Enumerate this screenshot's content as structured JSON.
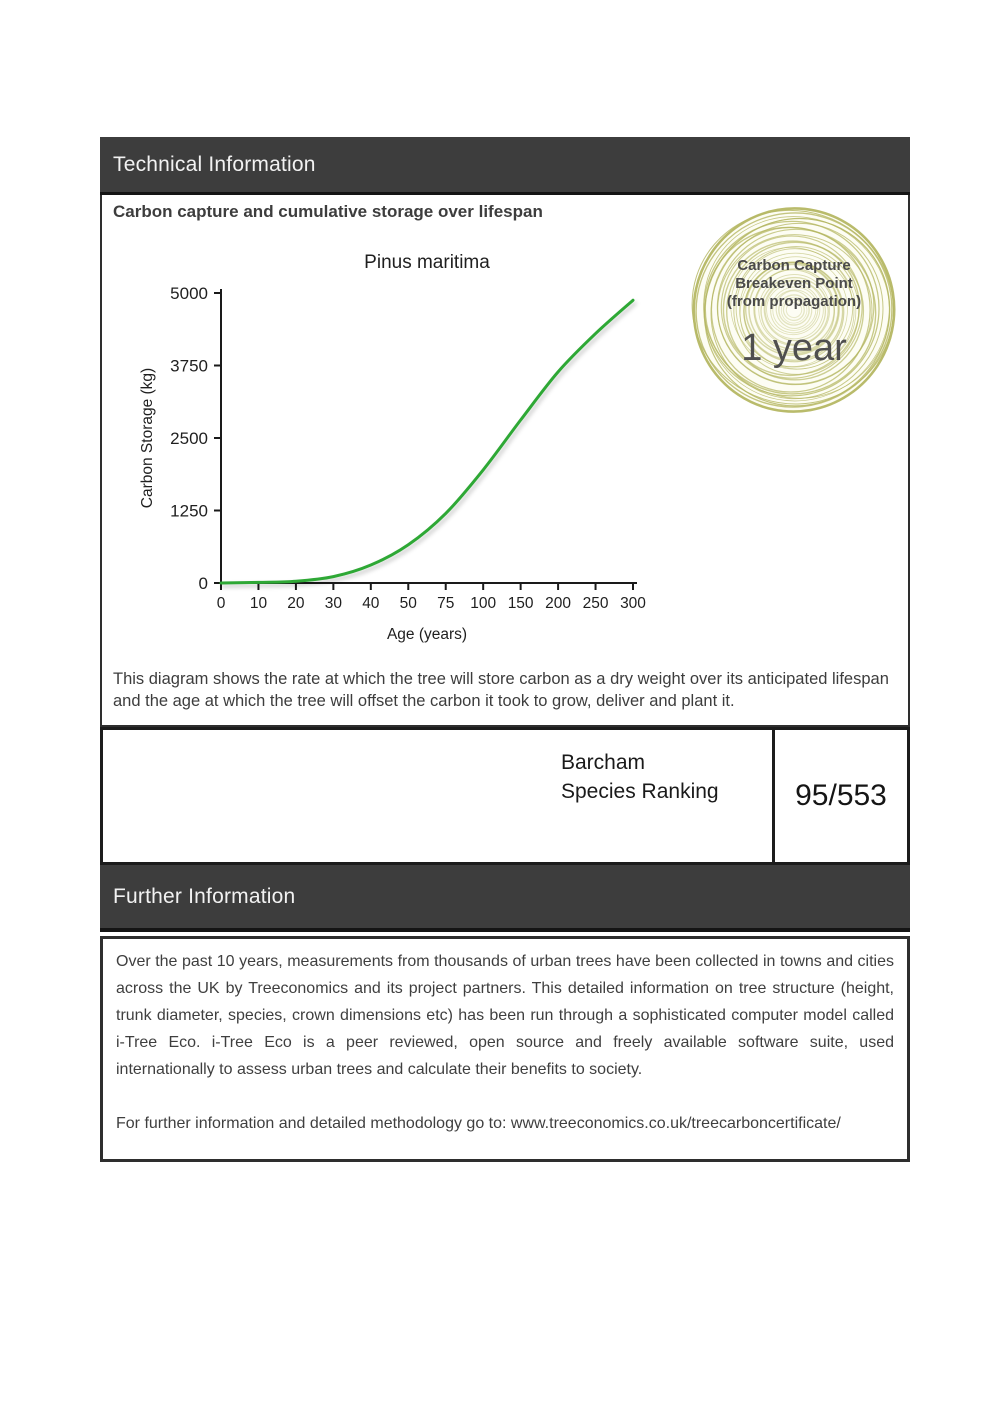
{
  "header": {
    "technical": "Technical Information",
    "further": "Further Information"
  },
  "technical": {
    "subtitle": "Carbon capture and cumulative storage over lifespan",
    "description": "This diagram shows the rate at which the tree will store carbon as a dry weight over its anticipated lifespan and the age at which the tree will offset the carbon it took to grow, deliver and plant it."
  },
  "chart_data": {
    "type": "line",
    "title": "Pinus maritima",
    "xlabel": "Age (years)",
    "ylabel": "Carbon Storage (kg)",
    "categories": [
      0,
      10,
      20,
      30,
      40,
      50,
      75,
      100,
      150,
      200,
      250,
      300
    ],
    "values": [
      0,
      10,
      30,
      110,
      310,
      660,
      1200,
      1950,
      2810,
      3640,
      4300,
      4875
    ],
    "y_ticks": [
      0,
      1250,
      2500,
      3750,
      5000
    ],
    "ylim": [
      0,
      5000
    ],
    "x_spacing": "equal-categorical",
    "grid": "off",
    "line_color": "#2ea836"
  },
  "badge": {
    "line1": "Carbon Capture",
    "line2": "Breakeven Point",
    "line3": "(from propagation)",
    "value": "1 year",
    "ring_color": "#b5b763"
  },
  "ranking": {
    "label_line1": "Barcham",
    "label_line2": "Species Ranking",
    "value": "95/553"
  },
  "further": {
    "paragraph": "Over the past 10 years, measurements from thousands of urban trees have been collected in towns and cities across the UK by Treeconomics and its project partners. This detailed information on tree structure (height, trunk diameter, species, crown dimensions etc) has been run through a sophisticated computer model called i-Tree Eco. i-Tree Eco is a peer reviewed, open source and freely available software suite, used internationally to assess urban trees and calculate their benefits to society.",
    "link_line": "For further information and detailed methodology go to: www.treeconomics.co.uk/treecarboncertificate/"
  },
  "colors": {
    "section_bar_bg": "#3d3d3d",
    "curve_green": "#2ea836",
    "badge_ring_olive": "#b5b763",
    "body_text": "#3f3f3f"
  }
}
